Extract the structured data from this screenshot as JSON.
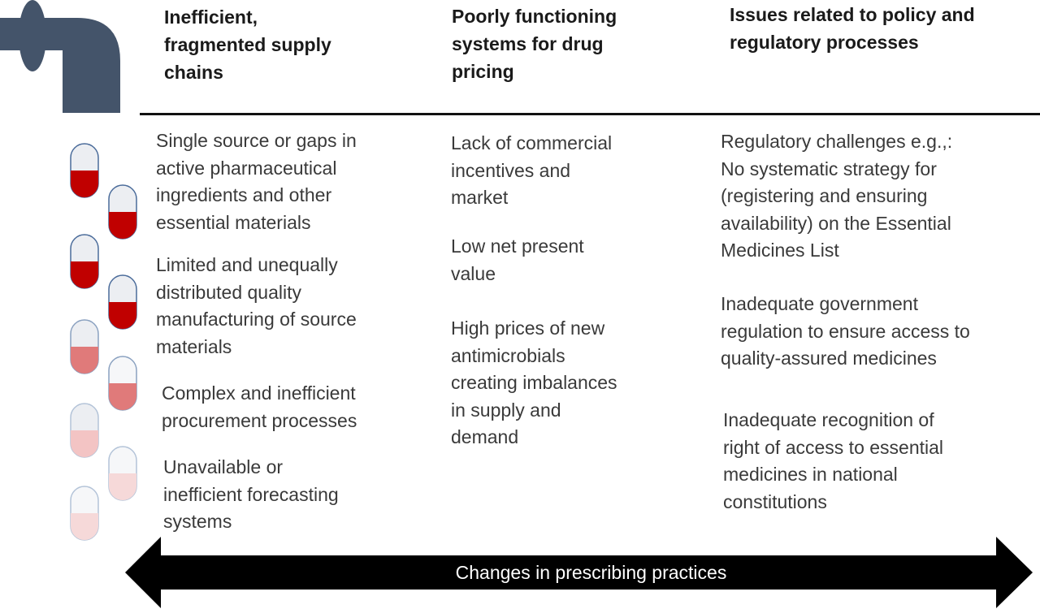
{
  "columns": [
    {
      "header": [
        "Inefficient,",
        "fragmented supply",
        "chains"
      ],
      "items": [
        [
          "Single source or gaps in",
          "active pharmaceutical",
          "ingredients and other",
          "essential materials"
        ],
        [
          "Limited  and unequally",
          "distributed quality",
          "manufacturing of source",
          "materials"
        ],
        [
          "Complex and inefficient",
          "procurement processes"
        ],
        [
          "Unavailable or",
          "inefficient forecasting",
          "systems"
        ]
      ]
    },
    {
      "header": [
        "Poorly functioning",
        "systems for drug",
        "pricing"
      ],
      "items": [
        [
          "Lack of commercial",
          "incentives and",
          "market"
        ],
        [
          "Low net present",
          "value"
        ],
        [
          "High prices of new",
          "antimicrobials",
          "creating imbalances",
          "in supply and",
          "demand"
        ]
      ]
    },
    {
      "header": [
        "Issues related to policy and",
        "regulatory processes"
      ],
      "items": [
        [
          "Regulatory challenges e.g.,:",
          "No systematic strategy for",
          "(registering and ensuring",
          "availability) on the Essential",
          "Medicines List"
        ],
        [
          "Inadequate government",
          "regulation to ensure access to",
          "quality-assured medicines"
        ],
        [
          "Inadequate recognition of",
          "right  of access to essential",
          "medicines in national",
          "constitutions"
        ]
      ]
    }
  ],
  "arrow_label": "Changes in  prescribing practices",
  "colors": {
    "pipe": "#44546a",
    "pill_shell": "#eceef2",
    "pill_outline": "#4a6b9a",
    "pill_fills": [
      "#c00000",
      "#c00000",
      "#c00000",
      "#c00000",
      "#e07a7a",
      "#e07a7a",
      "#f3c4c4",
      "#f3c4c4",
      "#f6d9d9"
    ]
  }
}
